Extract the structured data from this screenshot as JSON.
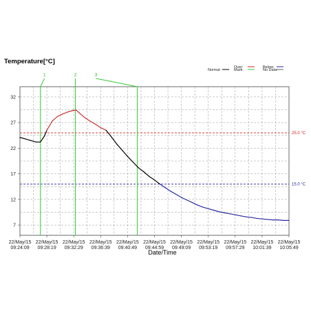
{
  "chart_data": {
    "type": "line",
    "title": "Temperature[°C]",
    "xlabel": "Date/Time",
    "ylabel": "",
    "ylim": [
      5,
      34
    ],
    "y_ticks": [
      7,
      12,
      17,
      22,
      27,
      32
    ],
    "x_ticks": [
      {
        "t": 0,
        "date": "22/May/15",
        "time": "09:24:09"
      },
      {
        "t": 5,
        "date": "22/May/15",
        "time": "09:28:19"
      },
      {
        "t": 10,
        "date": "22/May/15",
        "time": "09:32:29"
      },
      {
        "t": 15,
        "date": "22/May/15",
        "time": "09:36:39"
      },
      {
        "t": 20,
        "date": "22/May/15",
        "time": "09:40:49"
      },
      {
        "t": 25,
        "date": "22/May/15",
        "time": "09:44:59"
      },
      {
        "t": 30,
        "date": "22/May/15",
        "time": "09:49:09"
      },
      {
        "t": 35,
        "date": "22/May/15",
        "time": "09:53:19"
      },
      {
        "t": 40,
        "date": "22/May/15",
        "time": "09:57:29"
      },
      {
        "t": 45,
        "date": "22/May/15",
        "time": "10:01:39"
      },
      {
        "t": 50,
        "date": "22/May/15",
        "time": "10:05:49"
      }
    ],
    "grid": true,
    "thresholds": {
      "over": {
        "value": 25.0,
        "label": "25.0 °C",
        "color": "#d42020"
      },
      "below": {
        "value": 15.0,
        "label": "15.0 °C",
        "color": "#2a2aa0"
      }
    },
    "marks": [
      {
        "label": "1",
        "t": 3.8
      },
      {
        "label": "2",
        "t": 10.3
      },
      {
        "label": "3",
        "t": 21.8
      }
    ],
    "series": [
      {
        "color_normal": "#000000",
        "color_over": "#c83232",
        "color_below": "#2a2aa0",
        "points": [
          [
            0,
            24.1
          ],
          [
            1,
            23.8
          ],
          [
            2,
            23.5
          ],
          [
            3,
            23.2
          ],
          [
            3.8,
            23.2
          ],
          [
            4.5,
            24.3
          ],
          [
            5,
            25.5
          ],
          [
            6,
            27.3
          ],
          [
            7,
            28.2
          ],
          [
            8,
            28.7
          ],
          [
            9,
            29.1
          ],
          [
            10,
            29.4
          ],
          [
            10.5,
            29.4
          ],
          [
            11,
            28.9
          ],
          [
            12,
            28.0
          ],
          [
            13,
            27.3
          ],
          [
            14,
            26.7
          ],
          [
            15,
            26.0
          ],
          [
            16,
            25.5
          ],
          [
            17,
            24.2
          ],
          [
            18,
            22.8
          ],
          [
            19,
            21.6
          ],
          [
            20,
            20.4
          ],
          [
            21,
            19.3
          ],
          [
            22,
            18.2
          ],
          [
            23,
            17.4
          ],
          [
            24,
            16.5
          ],
          [
            25,
            15.8
          ],
          [
            26,
            15.0
          ],
          [
            27,
            14.3
          ],
          [
            28,
            13.6
          ],
          [
            29,
            13.0
          ],
          [
            30,
            12.4
          ],
          [
            31,
            11.9
          ],
          [
            32,
            11.4
          ],
          [
            33,
            10.9
          ],
          [
            34,
            10.5
          ],
          [
            35,
            10.2
          ],
          [
            36,
            9.9
          ],
          [
            37,
            9.6
          ],
          [
            38,
            9.4
          ],
          [
            39,
            9.2
          ],
          [
            40,
            9.0
          ],
          [
            41,
            8.8
          ],
          [
            42,
            8.6
          ],
          [
            43,
            8.5
          ],
          [
            44,
            8.3
          ],
          [
            45,
            8.2
          ],
          [
            46,
            8.1
          ],
          [
            47,
            8.0
          ],
          [
            48,
            8.0
          ],
          [
            49,
            7.9
          ],
          [
            50,
            7.9
          ]
        ]
      }
    ],
    "legend": {
      "placement": "top-right",
      "entries": [
        {
          "label": "Normal",
          "color": "#000000"
        },
        {
          "label": "Over:",
          "color": "#d42020"
        },
        {
          "label": "Mark:",
          "color": "#33cc33"
        },
        {
          "label": "Below:",
          "color": "#2a2aa0"
        },
        {
          "label": "No Data:",
          "color": "#666666"
        }
      ]
    }
  }
}
